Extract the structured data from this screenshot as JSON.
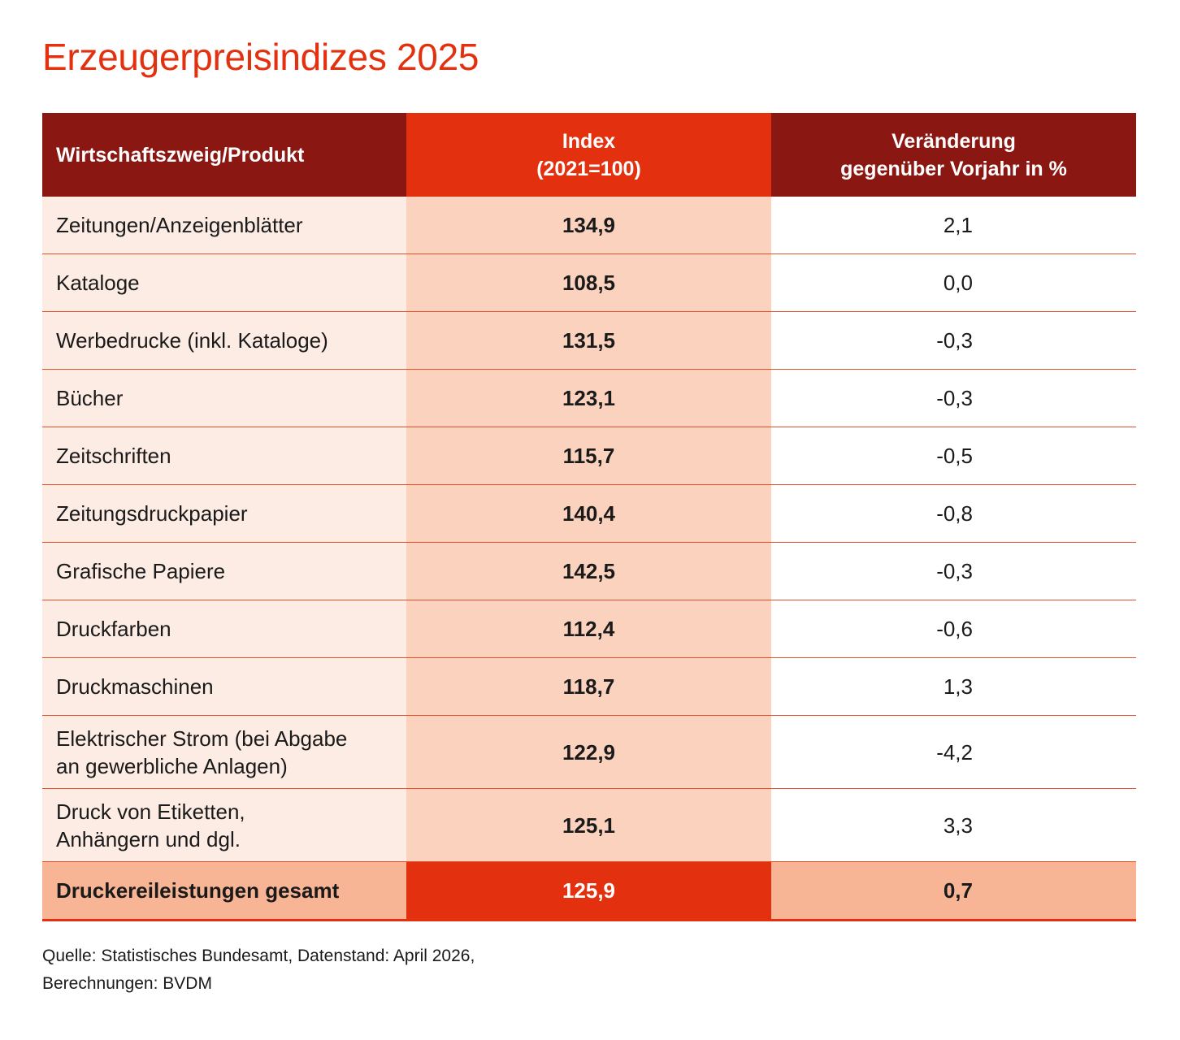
{
  "title": "Erzeugerpreisindizes 2025",
  "chart_data": {
    "type": "table",
    "title": "Erzeugerpreisindizes 2025",
    "columns": [
      {
        "label": "Wirtschaftszweig/Produkt",
        "lines": [
          "Wirtschaftszweig/Produkt"
        ]
      },
      {
        "label": "Index (2021=100)",
        "lines": [
          "Index",
          "(2021=100)"
        ]
      },
      {
        "label": "Veränderung gegenüber Vorjahr in %",
        "lines": [
          "Veränderung",
          "gegenüber Vorjahr in %"
        ]
      }
    ],
    "rows": [
      {
        "product": "Zeitungen/Anzeigenblätter",
        "product_lines": [
          "Zeitungen/Anzeigenblätter"
        ],
        "index": "134,9",
        "change": "2,1"
      },
      {
        "product": "Kataloge",
        "product_lines": [
          "Kataloge"
        ],
        "index": "108,5",
        "change": "0,0"
      },
      {
        "product": "Werbedrucke (inkl. Kataloge)",
        "product_lines": [
          "Werbedrucke (inkl. Kataloge)"
        ],
        "index": "131,5",
        "change": "-0,3"
      },
      {
        "product": "Bücher",
        "product_lines": [
          "Bücher"
        ],
        "index": "123,1",
        "change": "-0,3"
      },
      {
        "product": "Zeitschriften",
        "product_lines": [
          "Zeitschriften"
        ],
        "index": "115,7",
        "change": "-0,5"
      },
      {
        "product": "Zeitungsdruckpapier",
        "product_lines": [
          "Zeitungsdruckpapier"
        ],
        "index": "140,4",
        "change": "-0,8"
      },
      {
        "product": "Grafische Papiere",
        "product_lines": [
          "Grafische Papiere"
        ],
        "index": "142,5",
        "change": "-0,3"
      },
      {
        "product": "Druckfarben",
        "product_lines": [
          "Druckfarben"
        ],
        "index": "112,4",
        "change": "-0,6"
      },
      {
        "product": "Druckmaschinen",
        "product_lines": [
          "Druckmaschinen"
        ],
        "index": "118,7",
        "change": "1,3"
      },
      {
        "product": "Elektrischer Strom (bei Abgabe an gewerbliche Anlagen)",
        "product_lines": [
          "Elektrischer Strom (bei Abgabe",
          "an gewerbliche Anlagen)"
        ],
        "index": "122,9",
        "change": "-4,2"
      },
      {
        "product": "Druck von Etiketten, Anhängern und dgl.",
        "product_lines": [
          "Druck von Etiketten,",
          "Anhängern und dgl."
        ],
        "index": "125,1",
        "change": "3,3"
      }
    ],
    "total": {
      "product": "Druckereileistungen gesamt",
      "index": "125,9",
      "change": "0,7"
    }
  },
  "source_lines": [
    "Quelle: Statistisches Bundesamt, Datenstand: April 2026,",
    "Berechnungen: BVDM"
  ],
  "colors": {
    "accent": "#e3310f",
    "header_dark": "#8a1712",
    "name_cell": "#fdece4",
    "index_cell": "#fbd2be",
    "total_row": "#f8b596"
  }
}
